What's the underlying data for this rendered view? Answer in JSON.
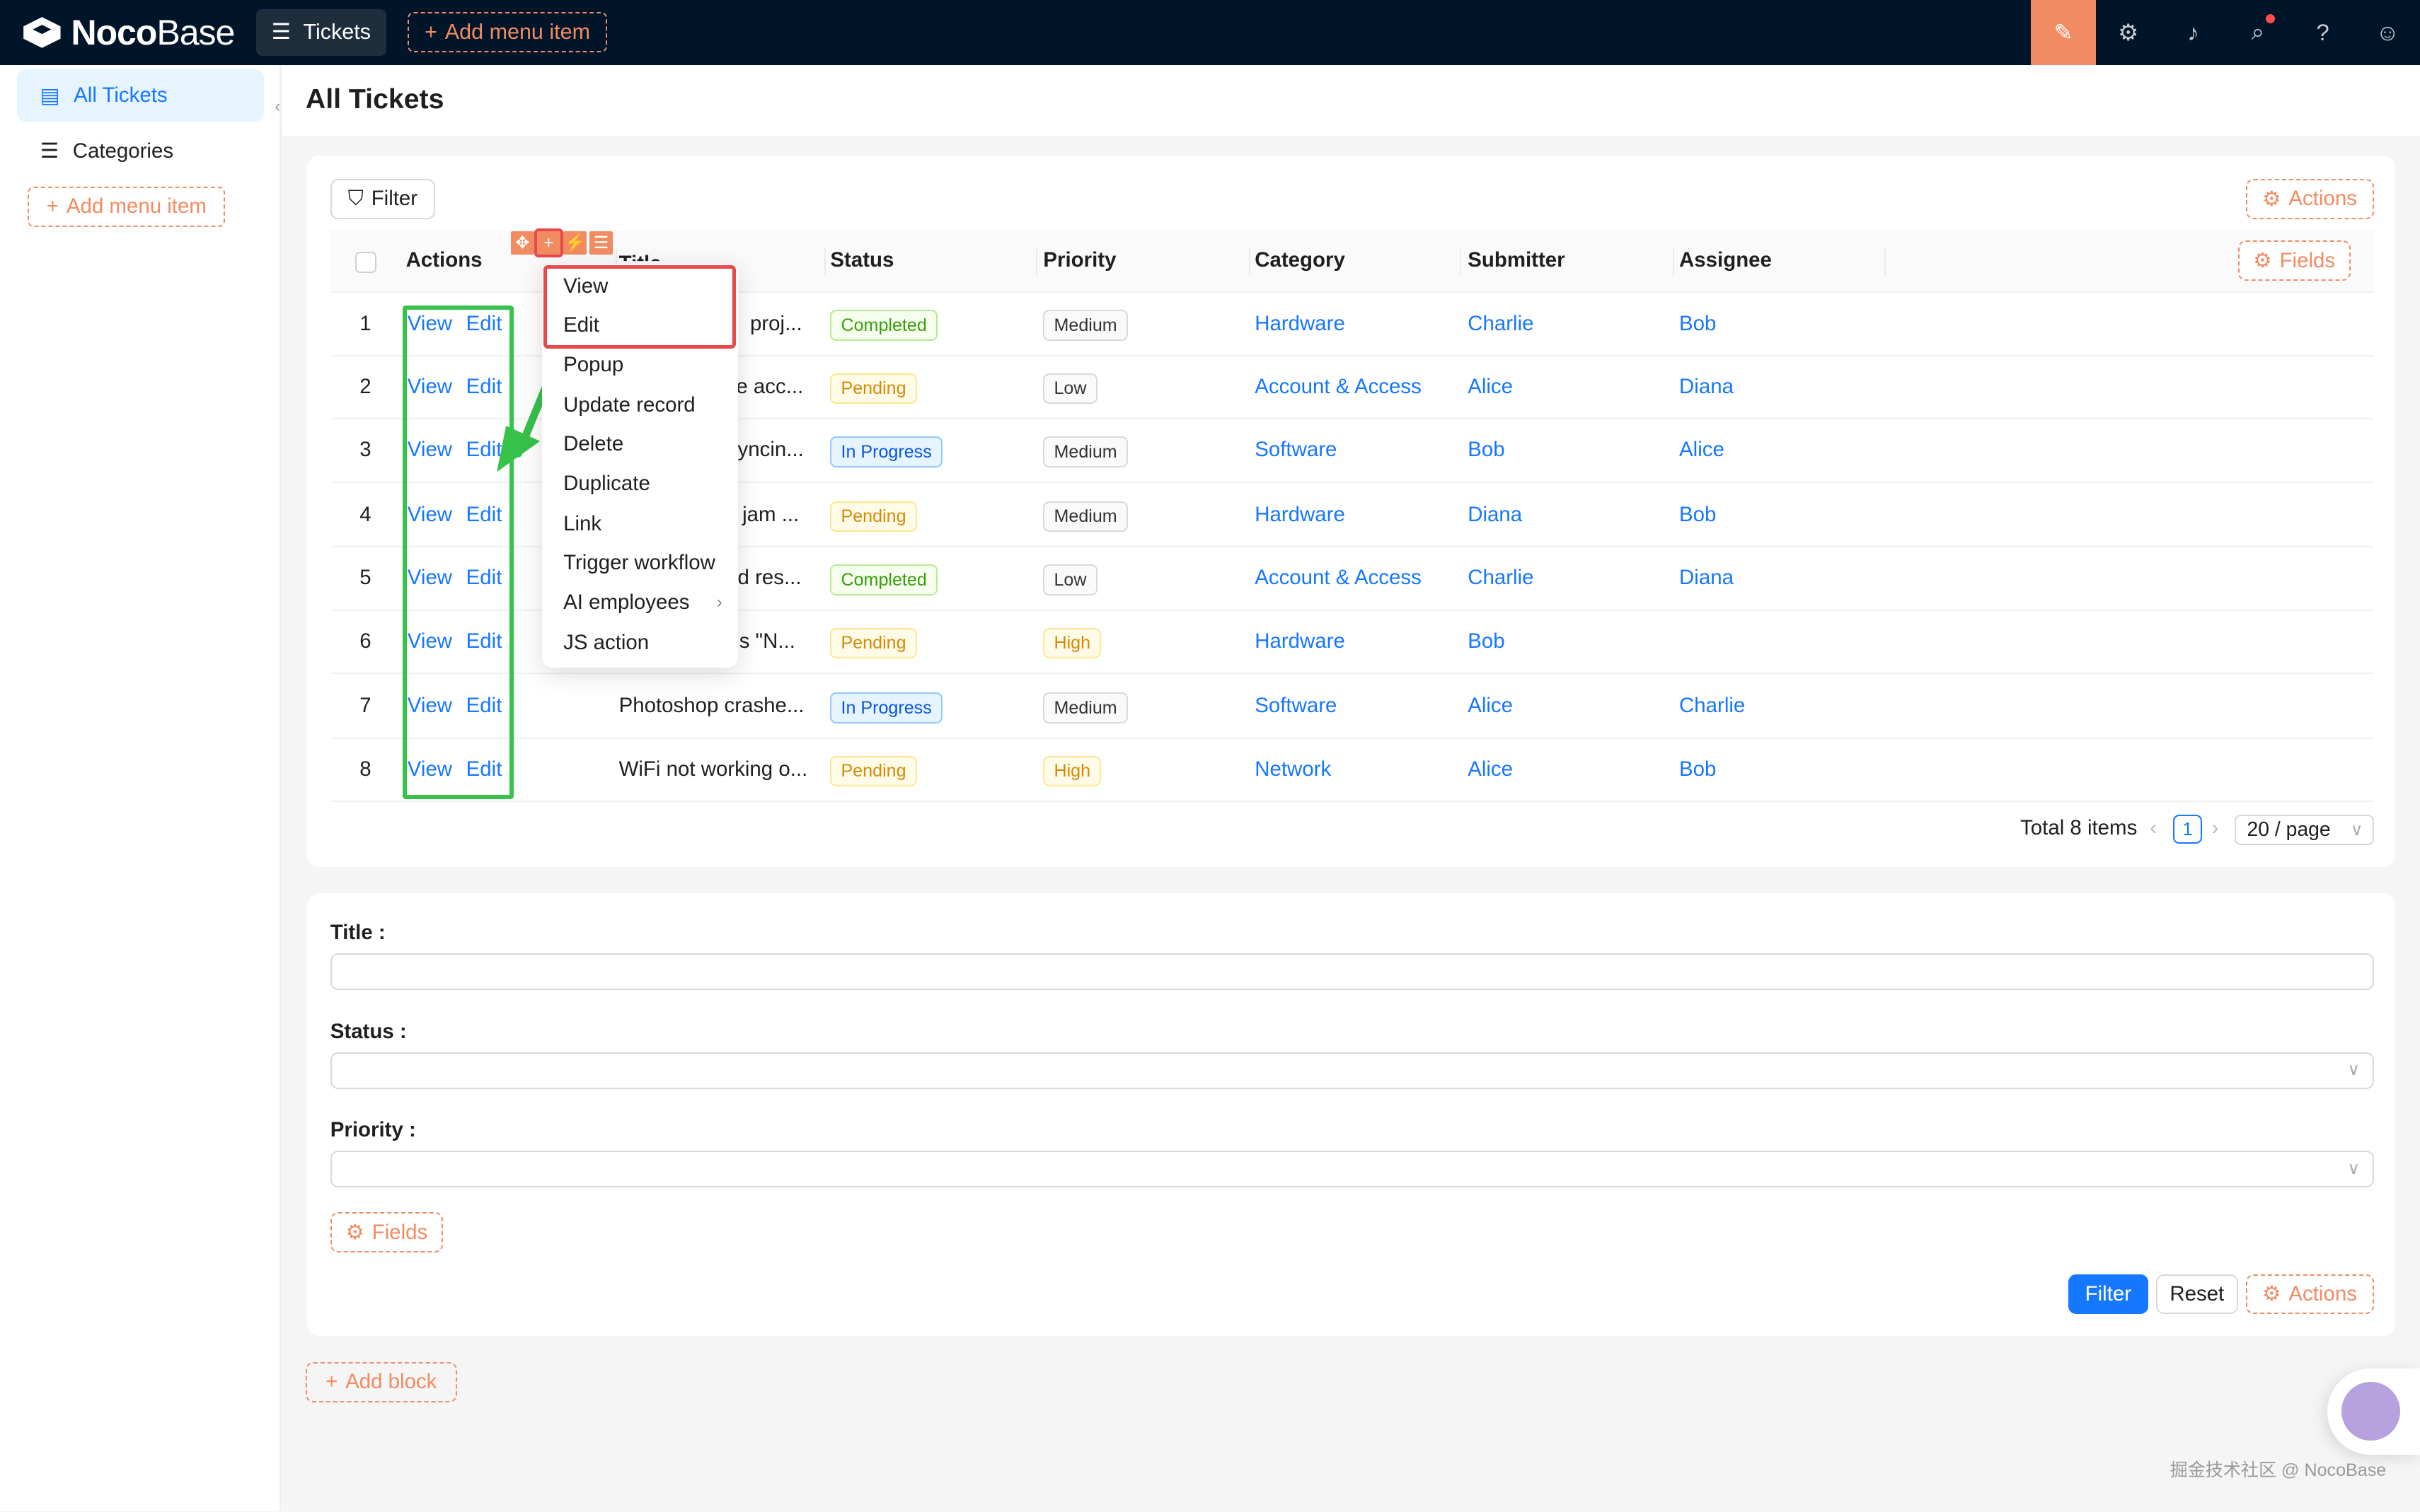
{
  "topbar": {
    "logo_bold": "Noco",
    "logo_light": "Base",
    "menu_active": "Tickets",
    "add_menu": "Add menu item",
    "icons": [
      "ui-editor-icon",
      "settings-icon",
      "bell-icon",
      "search-icon",
      "help-icon",
      "user-icon"
    ],
    "accent_color": "#f18b62"
  },
  "sidebar": {
    "items": [
      {
        "label": "All Tickets",
        "icon": "table-icon",
        "active": true
      },
      {
        "label": "Categories",
        "icon": "list-icon",
        "active": false
      }
    ],
    "add_menu": "Add menu item"
  },
  "page": {
    "title": "All Tickets"
  },
  "table_block": {
    "filter_label": "Filter",
    "actions_label": "Actions",
    "fields_label": "Fields",
    "columns": [
      "Actions",
      "Title",
      "Status",
      "Priority",
      "Category",
      "Submitter",
      "Assignee"
    ],
    "row_actions": {
      "view": "View",
      "edit": "Edit"
    },
    "rows": [
      {
        "no": "1",
        "title": "proj...",
        "status": "Completed",
        "priority": "Medium",
        "category": "Hardware",
        "submitter": "Charlie",
        "assignee": "Bob"
      },
      {
        "no": "2",
        "title": "e acc...",
        "status": "Pending",
        "priority": "Low",
        "category": "Account & Access",
        "submitter": "Alice",
        "assignee": "Diana"
      },
      {
        "no": "3",
        "title": "yncin...",
        "status": "In Progress",
        "priority": "Medium",
        "category": "Software",
        "submitter": "Bob",
        "assignee": "Alice"
      },
      {
        "no": "4",
        "title": "jam ...",
        "status": "Pending",
        "priority": "Medium",
        "category": "Hardware",
        "submitter": "Diana",
        "assignee": "Bob"
      },
      {
        "no": "5",
        "title": "d res...",
        "status": "Completed",
        "priority": "Low",
        "category": "Account & Access",
        "submitter": "Charlie",
        "assignee": "Diana"
      },
      {
        "no": "6",
        "title": "s \"N...",
        "status": "Pending",
        "priority": "High",
        "category": "Hardware",
        "submitter": "Bob",
        "assignee": ""
      },
      {
        "no": "7",
        "title": "Photoshop crashe...",
        "status": "In Progress",
        "priority": "Medium",
        "category": "Software",
        "submitter": "Alice",
        "assignee": "Charlie"
      },
      {
        "no": "8",
        "title": "WiFi not working o...",
        "status": "Pending",
        "priority": "High",
        "category": "Network",
        "submitter": "Alice",
        "assignee": "Bob"
      }
    ],
    "pagination": {
      "total": "Total 8 items",
      "page": "1",
      "page_size": "20 / page"
    }
  },
  "dropdown": {
    "items": [
      "View",
      "Edit",
      "Popup",
      "Update record",
      "Delete",
      "Duplicate",
      "Link",
      "Trigger workflow",
      "AI employees",
      "JS action"
    ]
  },
  "filter_form": {
    "labels": [
      "Title :",
      "Status :",
      "Priority :"
    ],
    "fields_label": "Fields",
    "filter_btn": "Filter",
    "reset_btn": "Reset",
    "actions_btn": "Actions"
  },
  "add_block": "Add block",
  "watermark": "掘金技术社区 @ NocoBase",
  "colors": {
    "link": "#1677ff",
    "completed": "#52c41a",
    "pending": "#d48806",
    "in_progress": "#1677ff",
    "annotation_green": "#37c24b",
    "annotation_red": "#e84a4a"
  }
}
